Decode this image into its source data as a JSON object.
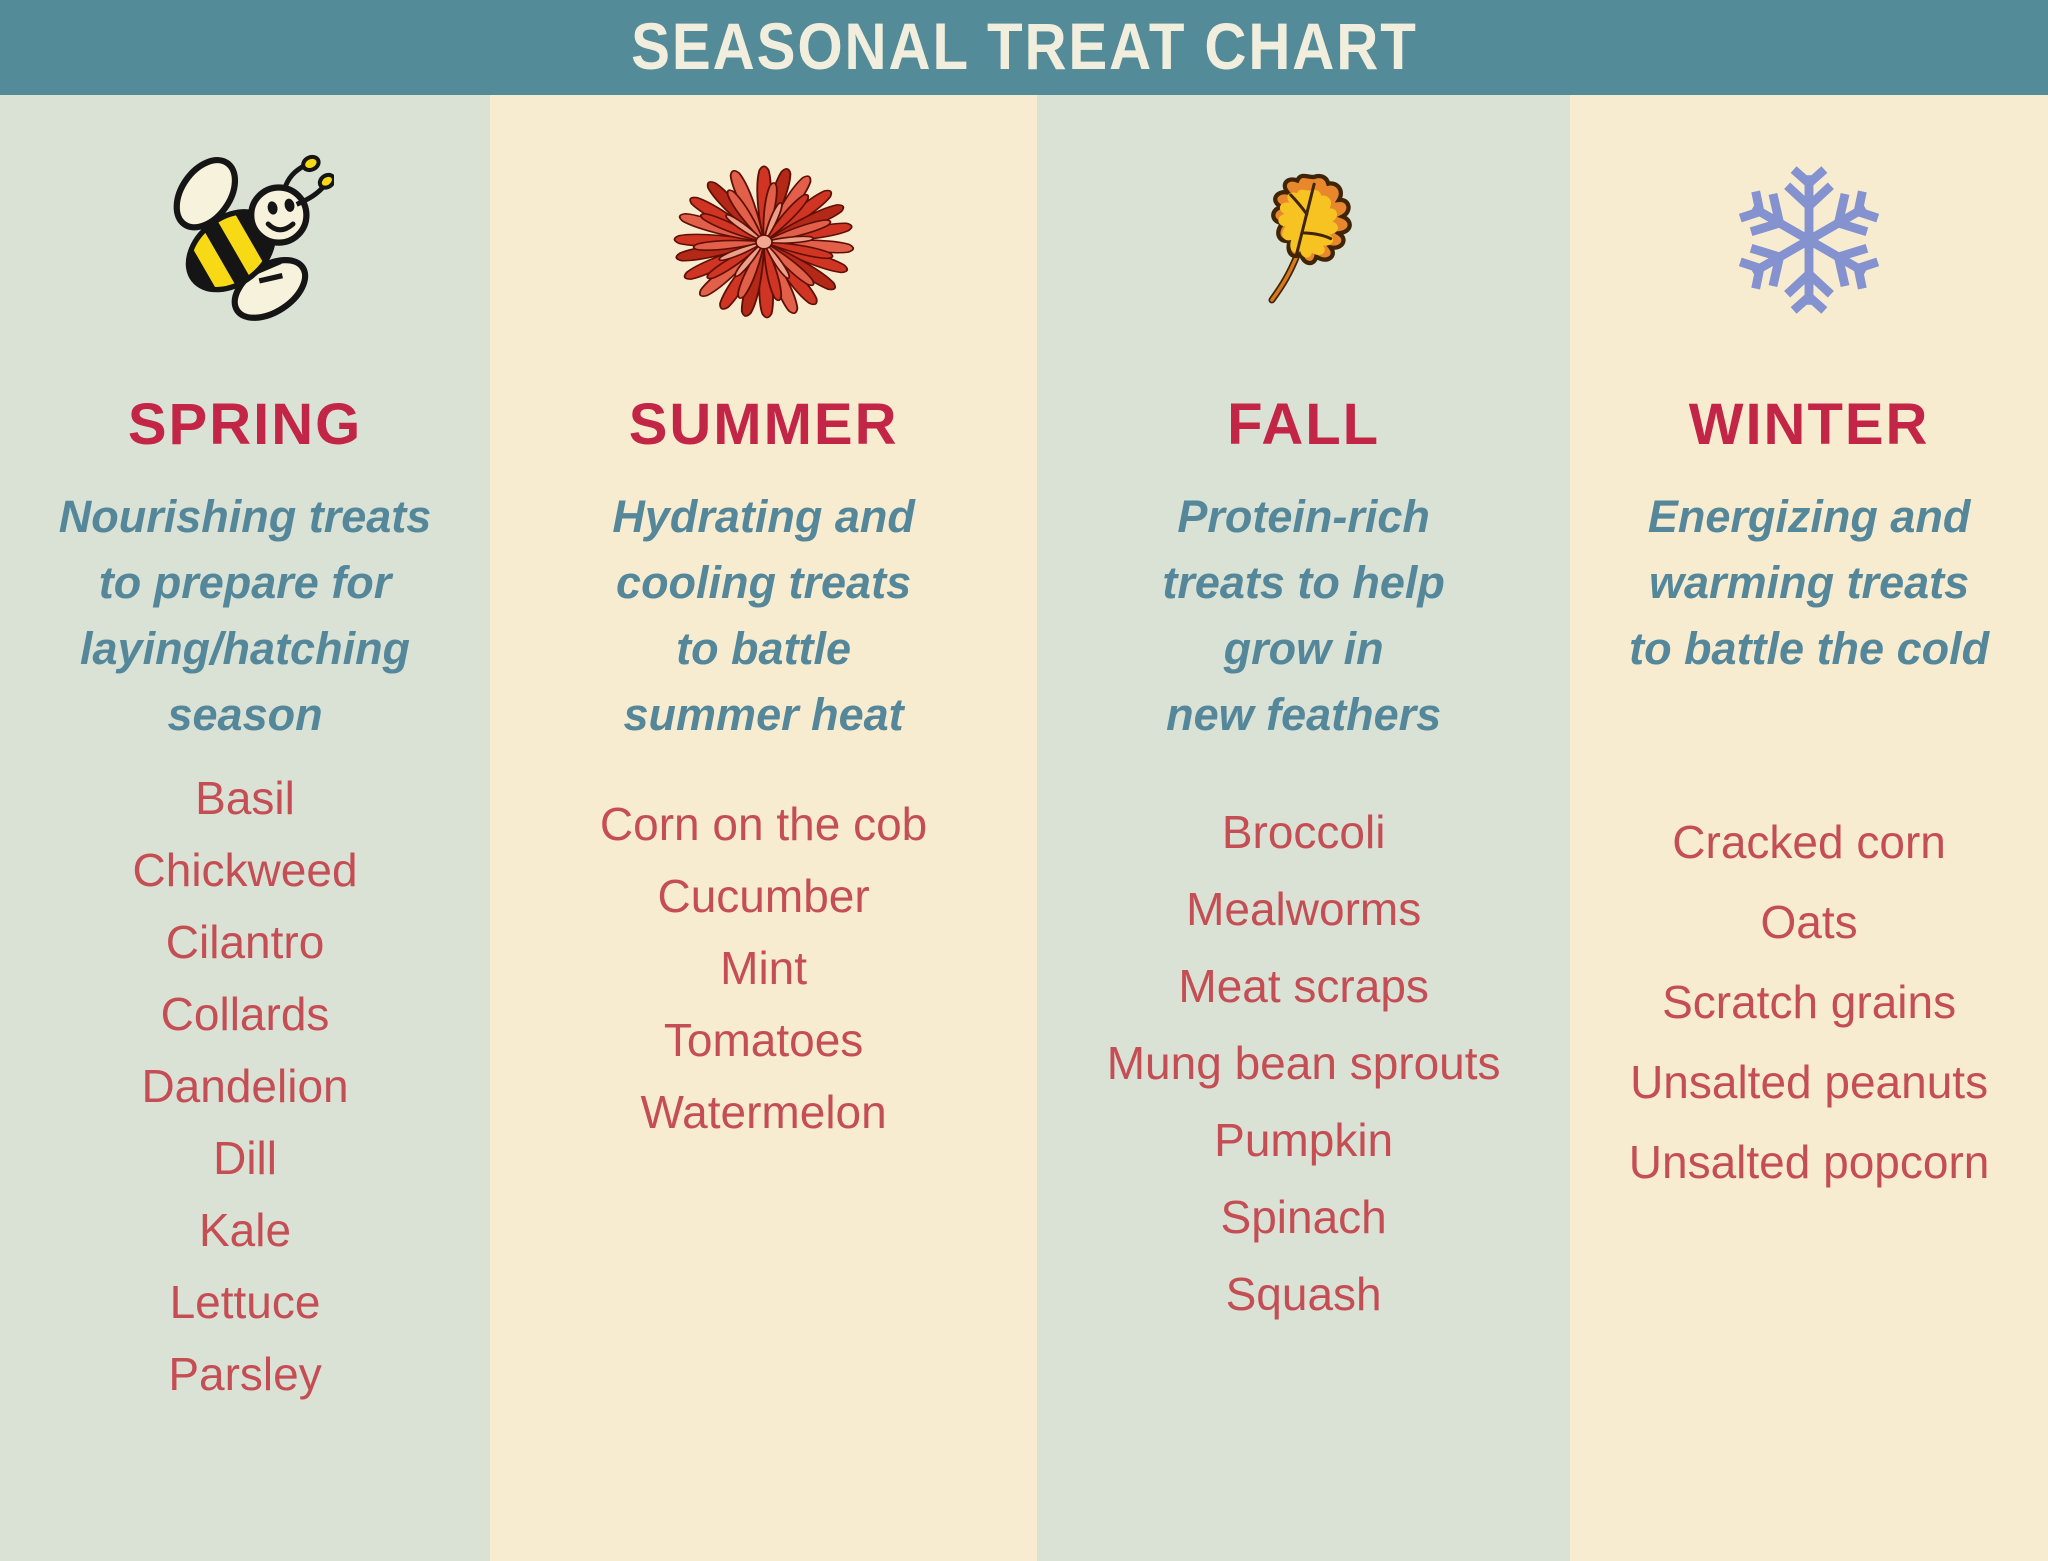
{
  "header": {
    "title": "SEASONAL TREAT CHART"
  },
  "colors": {
    "header_bg": "#548b99",
    "header_text": "#f2eedd",
    "sage_column_bg": "#d9e2d4",
    "cream_column_bg": "#f8ecd0",
    "heading_red": "#c22545",
    "item_red": "#c54e55",
    "description_teal": "#55879b",
    "snowflake_blue": "#8492cf",
    "flower_red": "#cf3522",
    "leaf_orange": "#e8872b",
    "bee_yellow": "#f8d916"
  },
  "columns": [
    {
      "id": "spring",
      "heading": "SPRING",
      "icon": "bee-icon",
      "description_lines": [
        "Nourishing treats",
        "to prepare for",
        "laying/hatching",
        "season"
      ],
      "items": [
        "Basil",
        "Chickweed",
        "Cilantro",
        "Collards",
        "Dandelion",
        "Dill",
        "Kale",
        "Lettuce",
        "Parsley"
      ]
    },
    {
      "id": "summer",
      "heading": "SUMMER",
      "icon": "aster-flower-icon",
      "description_lines": [
        "Hydrating and",
        "cooling treats",
        "to battle",
        "summer heat"
      ],
      "items": [
        "Corn on the cob",
        "Cucumber",
        "Mint",
        "Tomatoes",
        "Watermelon"
      ]
    },
    {
      "id": "fall",
      "heading": "FALL",
      "icon": "oak-leaf-icon",
      "description_lines": [
        "Protein-rich",
        "treats to help",
        "grow in",
        "new feathers"
      ],
      "items": [
        "Broccoli",
        "Mealworms",
        "Meat scraps",
        "Mung bean sprouts",
        "Pumpkin",
        "Spinach",
        "Squash"
      ]
    },
    {
      "id": "winter",
      "heading": "WINTER",
      "icon": "snowflake-icon",
      "description_lines": [
        "Energizing and",
        "warming treats",
        "to battle the cold"
      ],
      "items": [
        "Cracked corn",
        "Oats",
        "Scratch grains",
        "Unsalted peanuts",
        "Unsalted popcorn"
      ]
    }
  ]
}
